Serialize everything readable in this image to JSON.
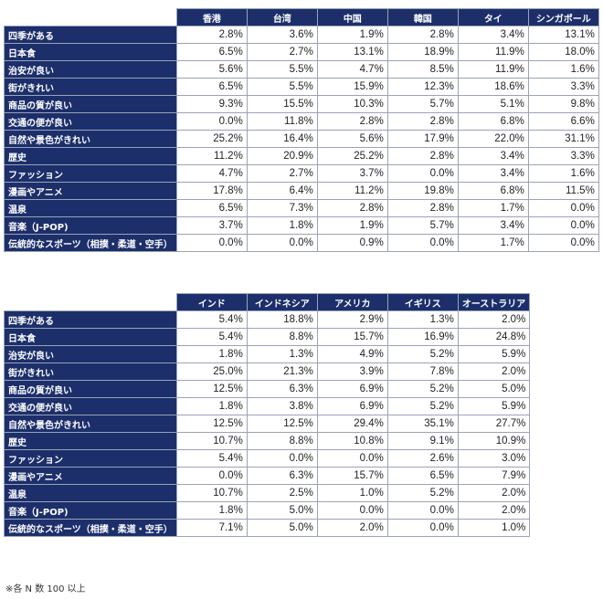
{
  "colors": {
    "header_bg": "#1c2f6b",
    "header_text": "#ffffff",
    "green": "#c8ecce",
    "yellow": "#fde9a0",
    "pink": "#f9c6cc",
    "white": "#ffffff"
  },
  "row_labels": [
    "四季がある",
    "日本食",
    "治安が良い",
    "街がきれい",
    "商品の質が良い",
    "交通の便が良い",
    "自然や景色がきれい",
    "歴史",
    "ファッション",
    "漫画やアニメ",
    "温泉",
    "音楽（J-POP)",
    "伝統的なスポーツ（相撲・柔道・空手）"
  ],
  "tables": [
    {
      "columns": [
        "香港",
        "台湾",
        "中国",
        "韓国",
        "タイ",
        "シンガポール"
      ],
      "rows": [
        [
          [
            "2.8%",
            "white"
          ],
          [
            "3.6%",
            "white"
          ],
          [
            "1.9%",
            "white"
          ],
          [
            "2.8%",
            "white"
          ],
          [
            "3.4%",
            "white"
          ],
          [
            "13.1%",
            "yellow"
          ]
        ],
        [
          [
            "6.5%",
            "green"
          ],
          [
            "2.7%",
            "white"
          ],
          [
            "13.1%",
            "yellow"
          ],
          [
            "18.9%",
            "yellow"
          ],
          [
            "11.9%",
            "yellow"
          ],
          [
            "18.0%",
            "yellow"
          ]
        ],
        [
          [
            "5.6%",
            "green"
          ],
          [
            "5.5%",
            "green"
          ],
          [
            "4.7%",
            "white"
          ],
          [
            "8.5%",
            "green"
          ],
          [
            "11.9%",
            "yellow"
          ],
          [
            "1.6%",
            "white"
          ]
        ],
        [
          [
            "6.5%",
            "green"
          ],
          [
            "5.5%",
            "green"
          ],
          [
            "15.9%",
            "yellow"
          ],
          [
            "12.3%",
            "yellow"
          ],
          [
            "18.6%",
            "yellow"
          ],
          [
            "3.3%",
            "white"
          ]
        ],
        [
          [
            "9.3%",
            "green"
          ],
          [
            "15.5%",
            "yellow"
          ],
          [
            "10.3%",
            "yellow"
          ],
          [
            "5.7%",
            "green"
          ],
          [
            "5.1%",
            "green"
          ],
          [
            "9.8%",
            "green"
          ]
        ],
        [
          [
            "0.0%",
            "white"
          ],
          [
            "11.8%",
            "yellow"
          ],
          [
            "2.8%",
            "white"
          ],
          [
            "2.8%",
            "white"
          ],
          [
            "6.8%",
            "green"
          ],
          [
            "6.6%",
            "green"
          ]
        ],
        [
          [
            "25.2%",
            "pink"
          ],
          [
            "16.4%",
            "yellow"
          ],
          [
            "5.6%",
            "green"
          ],
          [
            "17.9%",
            "yellow"
          ],
          [
            "22.0%",
            "pink"
          ],
          [
            "31.1%",
            "pink"
          ]
        ],
        [
          [
            "11.2%",
            "yellow"
          ],
          [
            "20.9%",
            "pink"
          ],
          [
            "25.2%",
            "pink"
          ],
          [
            "2.8%",
            "white"
          ],
          [
            "3.4%",
            "white"
          ],
          [
            "3.3%",
            "white"
          ]
        ],
        [
          [
            "4.7%",
            "white"
          ],
          [
            "2.7%",
            "white"
          ],
          [
            "3.7%",
            "white"
          ],
          [
            "0.0%",
            "white"
          ],
          [
            "3.4%",
            "white"
          ],
          [
            "1.6%",
            "white"
          ]
        ],
        [
          [
            "17.8%",
            "yellow"
          ],
          [
            "6.4%",
            "green"
          ],
          [
            "11.2%",
            "yellow"
          ],
          [
            "19.8%",
            "yellow"
          ],
          [
            "6.8%",
            "green"
          ],
          [
            "11.5%",
            "yellow"
          ]
        ],
        [
          [
            "6.5%",
            "green"
          ],
          [
            "7.3%",
            "green"
          ],
          [
            "2.8%",
            "white"
          ],
          [
            "2.8%",
            "white"
          ],
          [
            "1.7%",
            "white"
          ],
          [
            "0.0%",
            "white"
          ]
        ],
        [
          [
            "3.7%",
            "white"
          ],
          [
            "1.8%",
            "white"
          ],
          [
            "1.9%",
            "white"
          ],
          [
            "5.7%",
            "green"
          ],
          [
            "3.4%",
            "white"
          ],
          [
            "0.0%",
            "white"
          ]
        ],
        [
          [
            "0.0%",
            "white"
          ],
          [
            "0.0%",
            "white"
          ],
          [
            "0.9%",
            "white"
          ],
          [
            "0.0%",
            "white"
          ],
          [
            "1.7%",
            "white"
          ],
          [
            "0.0%",
            "white"
          ]
        ]
      ]
    },
    {
      "columns": [
        "インド",
        "インドネシア",
        "アメリカ",
        "イギリス",
        "オーストラリア"
      ],
      "rows": [
        [
          [
            "5.4%",
            "green"
          ],
          [
            "18.8%",
            "yellow"
          ],
          [
            "2.9%",
            "white"
          ],
          [
            "1.3%",
            "white"
          ],
          [
            "2.0%",
            "white"
          ]
        ],
        [
          [
            "5.4%",
            "green"
          ],
          [
            "8.8%",
            "green"
          ],
          [
            "15.7%",
            "yellow"
          ],
          [
            "16.9%",
            "yellow"
          ],
          [
            "24.8%",
            "pink"
          ]
        ],
        [
          [
            "1.8%",
            "white"
          ],
          [
            "1.3%",
            "white"
          ],
          [
            "4.9%",
            "white"
          ],
          [
            "5.2%",
            "green"
          ],
          [
            "5.9%",
            "green"
          ]
        ],
        [
          [
            "25.0%",
            "pink"
          ],
          [
            "21.3%",
            "pink"
          ],
          [
            "3.9%",
            "white"
          ],
          [
            "7.8%",
            "green"
          ],
          [
            "2.0%",
            "white"
          ]
        ],
        [
          [
            "12.5%",
            "yellow"
          ],
          [
            "6.3%",
            "green"
          ],
          [
            "6.9%",
            "green"
          ],
          [
            "5.2%",
            "green"
          ],
          [
            "5.0%",
            "white"
          ]
        ],
        [
          [
            "1.8%",
            "white"
          ],
          [
            "3.8%",
            "white"
          ],
          [
            "6.9%",
            "green"
          ],
          [
            "5.2%",
            "green"
          ],
          [
            "5.9%",
            "green"
          ]
        ],
        [
          [
            "12.5%",
            "yellow"
          ],
          [
            "12.5%",
            "yellow"
          ],
          [
            "29.4%",
            "pink"
          ],
          [
            "35.1%",
            "pink"
          ],
          [
            "27.7%",
            "pink"
          ]
        ],
        [
          [
            "10.7%",
            "yellow"
          ],
          [
            "8.8%",
            "green"
          ],
          [
            "10.8%",
            "yellow"
          ],
          [
            "9.1%",
            "green"
          ],
          [
            "10.9%",
            "yellow"
          ]
        ],
        [
          [
            "5.4%",
            "green"
          ],
          [
            "0.0%",
            "white"
          ],
          [
            "0.0%",
            "white"
          ],
          [
            "2.6%",
            "white"
          ],
          [
            "3.0%",
            "white"
          ]
        ],
        [
          [
            "0.0%",
            "white"
          ],
          [
            "6.3%",
            "green"
          ],
          [
            "15.7%",
            "yellow"
          ],
          [
            "6.5%",
            "green"
          ],
          [
            "7.9%",
            "green"
          ]
        ],
        [
          [
            "10.7%",
            "yellow"
          ],
          [
            "2.5%",
            "white"
          ],
          [
            "1.0%",
            "white"
          ],
          [
            "5.2%",
            "green"
          ],
          [
            "2.0%",
            "white"
          ]
        ],
        [
          [
            "1.8%",
            "white"
          ],
          [
            "5.0%",
            "green"
          ],
          [
            "0.0%",
            "white"
          ],
          [
            "0.0%",
            "white"
          ],
          [
            "2.0%",
            "white"
          ]
        ],
        [
          [
            "7.1%",
            "green"
          ],
          [
            "5.0%",
            "green"
          ],
          [
            "2.0%",
            "white"
          ],
          [
            "0.0%",
            "white"
          ],
          [
            "1.0%",
            "white"
          ]
        ]
      ]
    }
  ],
  "footnote": "※各 N 数 100 以上"
}
